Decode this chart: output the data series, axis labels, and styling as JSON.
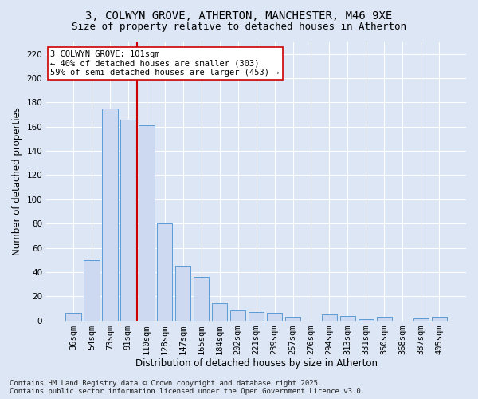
{
  "title1": "3, COLWYN GROVE, ATHERTON, MANCHESTER, M46 9XE",
  "title2": "Size of property relative to detached houses in Atherton",
  "xlabel": "Distribution of detached houses by size in Atherton",
  "ylabel": "Number of detached properties",
  "footer": "Contains HM Land Registry data © Crown copyright and database right 2025.\nContains public sector information licensed under the Open Government Licence v3.0.",
  "categories": [
    "36sqm",
    "54sqm",
    "73sqm",
    "91sqm",
    "110sqm",
    "128sqm",
    "147sqm",
    "165sqm",
    "184sqm",
    "202sqm",
    "221sqm",
    "239sqm",
    "257sqm",
    "276sqm",
    "294sqm",
    "313sqm",
    "331sqm",
    "350sqm",
    "368sqm",
    "387sqm",
    "405sqm"
  ],
  "values": [
    6,
    50,
    175,
    166,
    161,
    80,
    45,
    36,
    14,
    8,
    7,
    6,
    3,
    0,
    5,
    4,
    1,
    3,
    0,
    2,
    3
  ],
  "bar_color": "#ccd9f0",
  "bar_edge_color": "#5b9bd5",
  "vline_color": "#cc0000",
  "vline_x": 3.5,
  "annotation_text": "3 COLWYN GROVE: 101sqm\n← 40% of detached houses are smaller (303)\n59% of semi-detached houses are larger (453) →",
  "annotation_box_color": "#ffffff",
  "annotation_box_edge": "#cc0000",
  "ylim": [
    0,
    230
  ],
  "yticks": [
    0,
    20,
    40,
    60,
    80,
    100,
    120,
    140,
    160,
    180,
    200,
    220
  ],
  "fig_bg": "#dce6f5",
  "plot_bg": "#dce6f5",
  "grid_color": "#ffffff",
  "title_fontsize": 10,
  "subtitle_fontsize": 9,
  "axis_label_fontsize": 8.5,
  "tick_fontsize": 7.5,
  "footer_fontsize": 6.5,
  "ann_fontsize": 7.5
}
